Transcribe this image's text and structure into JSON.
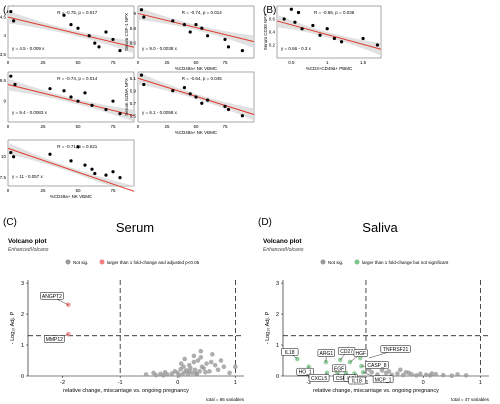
{
  "figure": {
    "panel_labels": [
      "(A)",
      "(B)",
      "(C)",
      "(D)"
    ],
    "serum_title": "Serum",
    "saliva_title": "Saliva"
  },
  "chart_data": [
    {
      "id": "A1",
      "type": "scatter",
      "title": "",
      "ylabel": "Serum CA15 NPX",
      "xlabel": "",
      "annotation": "R = -0.75, p = 0.017",
      "equation": "y = 4.5 - 0.009 x",
      "xlim": [
        0,
        90
      ],
      "ylim": [
        3.4,
        4.8
      ],
      "xticks": [
        0,
        25,
        50,
        75
      ],
      "yticks": [
        3.5,
        4.0,
        4.5
      ],
      "x": [
        2,
        4,
        40,
        45,
        50,
        58,
        62,
        65,
        70,
        75,
        80
      ],
      "y": [
        4.65,
        4.4,
        4.55,
        4.3,
        4.2,
        4.0,
        3.8,
        3.7,
        4.1,
        3.9,
        3.6
      ],
      "fit": {
        "intercept": 4.5,
        "slope": -0.009
      }
    },
    {
      "id": "A2",
      "type": "scatter",
      "title": "",
      "ylabel": "Serum CSF-1 NPX",
      "xlabel": "%CD49a+ NK VBMC",
      "annotation": "R = -0.74, p = 0.014",
      "equation": "y = 9.0 - 0.0038 x",
      "xlim": [
        0,
        100
      ],
      "ylim": [
        8.4,
        9.1
      ],
      "xticks": [
        0,
        25,
        50,
        75
      ],
      "yticks": [
        8.6,
        8.8,
        9.0
      ],
      "x": [
        3,
        5,
        30,
        40,
        45,
        50,
        55,
        60,
        75,
        78,
        90
      ],
      "y": [
        9.05,
        8.95,
        8.9,
        8.85,
        8.75,
        8.85,
        8.8,
        8.7,
        8.65,
        8.55,
        8.5
      ],
      "fit": {
        "intercept": 9.0,
        "slope": -0.0038
      }
    },
    {
      "id": "A3",
      "type": "scatter",
      "title": "",
      "ylabel": "Serum TWEAK NPX",
      "xlabel": "",
      "annotation": "R = -0.74, p = 0.014",
      "equation": "y = 9.4 - 0.0083 x",
      "xlim": [
        0,
        90
      ],
      "ylim": [
        8.5,
        9.7
      ],
      "xticks": [
        0,
        25,
        50,
        75
      ],
      "yticks": [
        9.0,
        9.5
      ],
      "x": [
        2,
        5,
        30,
        40,
        45,
        50,
        55,
        60,
        70,
        75,
        80
      ],
      "y": [
        9.6,
        9.4,
        9.3,
        9.25,
        9.1,
        9.0,
        9.2,
        8.9,
        8.8,
        9.0,
        8.7
      ],
      "fit": {
        "intercept": 9.4,
        "slope": -0.0083
      }
    },
    {
      "id": "A4",
      "type": "scatter",
      "title": "",
      "ylabel": "Serum GZMA NPX",
      "xlabel": "%CD49a+ NK VBMC",
      "annotation": "R = -0.64, p = 0.045",
      "equation": "y = 6.1 - 0.0058 x",
      "xlim": [
        0,
        100
      ],
      "ylim": [
        5.4,
        6.2
      ],
      "xticks": [
        0,
        25,
        50,
        75
      ],
      "yticks": [
        5.5,
        5.7,
        5.9,
        6.1
      ],
      "x": [
        3,
        5,
        30,
        40,
        45,
        50,
        55,
        60,
        75,
        78,
        90
      ],
      "y": [
        6.15,
        6.0,
        5.9,
        5.95,
        5.85,
        5.8,
        5.7,
        5.75,
        5.65,
        5.6,
        5.5
      ],
      "fit": {
        "intercept": 6.1,
        "slope": -0.0058
      }
    },
    {
      "id": "A5",
      "type": "scatter",
      "title": "",
      "ylabel": "Serum CD40 NPX",
      "xlabel": "%CD49a+ NK VBMC",
      "annotation": "R = -0.71, p = 0.021",
      "equation": "y = 11 - 0.057 x",
      "xlim": [
        0,
        90
      ],
      "ylim": [
        6.5,
        12
      ],
      "xticks": [
        0,
        25,
        50,
        75
      ],
      "yticks": [
        7.5,
        10.0
      ],
      "x": [
        2,
        4,
        30,
        45,
        50,
        55,
        60,
        62,
        70,
        75,
        80
      ],
      "y": [
        10.5,
        10.0,
        10.3,
        9.5,
        11.2,
        9.0,
        8.5,
        8.0,
        7.8,
        8.2,
        7.5
      ],
      "fit": {
        "intercept": 11,
        "slope": -0.057
      }
    },
    {
      "id": "B",
      "type": "scatter",
      "title": "",
      "ylabel": "Serum CD38 NPX",
      "xlabel": "%CD3+CD49a+ PBMC",
      "annotation": "R = -0.66, p = 0.036",
      "equation": "y = 0.66 - 0.3 x",
      "xlim": [
        0.3,
        1.75
      ],
      "ylim": [
        0.0,
        0.8
      ],
      "xticks": [
        0.5,
        1.0,
        1.5
      ],
      "yticks": [
        0.2,
        0.4,
        0.6
      ],
      "x": [
        0.4,
        0.5,
        0.55,
        0.6,
        0.65,
        0.8,
        0.9,
        1.0,
        1.1,
        1.2,
        1.5,
        1.7
      ],
      "y": [
        0.6,
        0.75,
        0.55,
        0.7,
        0.45,
        0.5,
        0.35,
        0.45,
        0.3,
        0.25,
        0.3,
        0.2
      ],
      "fit": {
        "intercept": 0.66,
        "slope": -0.3
      }
    },
    {
      "id": "C",
      "type": "scatter",
      "subtype": "volcano",
      "title": "Volcano plot",
      "subtitle": "EnhancedVolcano",
      "xlabel": "relative change, miscarriage vs. ongoing pregnancy",
      "ylabel": "- Log₁₀ Adj. P",
      "legend": [
        "Not sig.",
        "larger than 1 fold-change and adjusted p<0.05"
      ],
      "legend_colors": [
        "#9a9a9a",
        "#f08080"
      ],
      "caption": "total = 86 variables",
      "xlim": [
        -2.6,
        1.15
      ],
      "ylim": [
        0,
        3.1
      ],
      "xticks": [
        -2,
        -1,
        0,
        1
      ],
      "yticks": [
        0,
        1,
        2,
        3
      ],
      "vlines": [
        -1,
        1
      ],
      "hline": 1.3,
      "labels": [
        {
          "text": "ANGPT2",
          "x": -1.9,
          "y": 2.3
        },
        {
          "text": "MMP12",
          "x": -1.9,
          "y": 1.35
        }
      ],
      "series": [
        {
          "name": "larger than 1 fold-change and adjusted p<0.05",
          "x": [
            -1.9,
            -1.9
          ],
          "y": [
            2.3,
            1.35
          ]
        },
        {
          "name": "Not sig.",
          "x": [
            -0.55,
            -0.42,
            -0.38,
            -0.3,
            -0.22,
            -0.18,
            -0.1,
            -0.05,
            0.0,
            0.02,
            0.05,
            0.08,
            0.1,
            0.12,
            0.15,
            0.18,
            0.2,
            0.22,
            0.25,
            0.28,
            0.3,
            0.33,
            0.35,
            0.38,
            0.4,
            0.42,
            0.45,
            0.5,
            0.55,
            0.6,
            0.65,
            0.7,
            0.75,
            0.8,
            0.9,
            1.0,
            -0.25,
            0.12,
            0.28,
            0.48,
            0.58,
            0.4,
            0.32,
            0.2,
            0.06
          ],
          "y": [
            0.05,
            0.1,
            0.03,
            0.07,
            0.12,
            0.05,
            0.08,
            0.15,
            0.1,
            0.02,
            0.22,
            0.05,
            0.3,
            0.12,
            0.18,
            0.07,
            0.35,
            0.25,
            0.1,
            0.45,
            0.2,
            0.05,
            0.5,
            0.15,
            0.6,
            0.3,
            0.25,
            0.4,
            0.15,
            0.7,
            0.35,
            0.2,
            0.5,
            0.3,
            0.1,
            0.3,
            0.02,
            0.55,
            0.65,
            0.12,
            0.45,
            0.8,
            0.08,
            0.15,
            0.4
          ]
        }
      ]
    },
    {
      "id": "D",
      "type": "scatter",
      "subtype": "volcano",
      "title": "Volcano plot",
      "subtitle": "EnhancedVolcano",
      "xlabel": "relative change, miscarriage vs. ongoing pregnancy",
      "ylabel": "- Log₁₀ Adj. P",
      "legend": [
        "Not sig.",
        "larger than 1 fold-change but not significant"
      ],
      "legend_colors": [
        "#9a9a9a",
        "#7dc78a"
      ],
      "caption": "total = 47 variables",
      "xlim": [
        -2.45,
        1.15
      ],
      "ylim": [
        0,
        3.1
      ],
      "xticks": [
        -2,
        -1,
        0,
        1
      ],
      "yticks": [
        0,
        1,
        2,
        3
      ],
      "vlines": [
        -1,
        1
      ],
      "hline": 1.3,
      "labels": [
        {
          "text": "IL18",
          "x": -2.2,
          "y": 0.55
        },
        {
          "text": "HO_1",
          "x": -2.0,
          "y": 0.3
        },
        {
          "text": "ARG1",
          "x": -1.7,
          "y": 0.45
        },
        {
          "text": "EGF",
          "x": -1.52,
          "y": 0.28
        },
        {
          "text": "CXCL5",
          "x": -1.68,
          "y": 0.1
        },
        {
          "text": "CD27",
          "x": -1.45,
          "y": 0.52
        },
        {
          "text": "CSF_1",
          "x": -1.5,
          "y": 0.1
        },
        {
          "text": "HGF",
          "x": -1.28,
          "y": 0.45
        },
        {
          "text": "IL6",
          "x": -1.35,
          "y": 0.1
        },
        {
          "text": "TNFRSF21",
          "x": -0.95,
          "y": 0.58
        },
        {
          "text": "CASP_8",
          "x": -1.08,
          "y": 0.32
        },
        {
          "text": "IL18",
          "x": -1.2,
          "y": 0.08
        },
        {
          "text": "MCP_1",
          "x": -1.05,
          "y": 0.12
        }
      ],
      "series": [
        {
          "name": "larger than 1 fold-change but not significant",
          "x": [
            -2.2,
            -2.0,
            -1.7,
            -1.52,
            -1.68,
            -1.45,
            -1.5,
            -1.28,
            -1.35,
            -1.08,
            -1.2,
            -1.05,
            -1.1
          ],
          "y": [
            0.55,
            0.3,
            0.45,
            0.28,
            0.1,
            0.52,
            0.1,
            0.45,
            0.1,
            0.32,
            0.08,
            0.12,
            0.58
          ]
        },
        {
          "name": "Not sig.",
          "x": [
            -0.95,
            -0.9,
            -0.85,
            -0.8,
            -0.72,
            -0.65,
            -0.55,
            -0.45,
            -0.35,
            -0.3,
            -0.2,
            -0.12,
            -0.05,
            0.05,
            0.12,
            0.22,
            0.35,
            0.5,
            0.6,
            0.75,
            -0.6,
            -0.4,
            -0.25,
            0.15,
            -0.7
          ],
          "y": [
            0.22,
            0.12,
            0.35,
            0.05,
            0.18,
            0.1,
            0.04,
            0.08,
            0.03,
            0.12,
            0.05,
            0.02,
            0.07,
            0.04,
            0.02,
            0.06,
            0.03,
            0.01,
            0.05,
            0.02,
            0.15,
            0.2,
            0.1,
            0.08,
            0.28
          ]
        }
      ]
    }
  ]
}
